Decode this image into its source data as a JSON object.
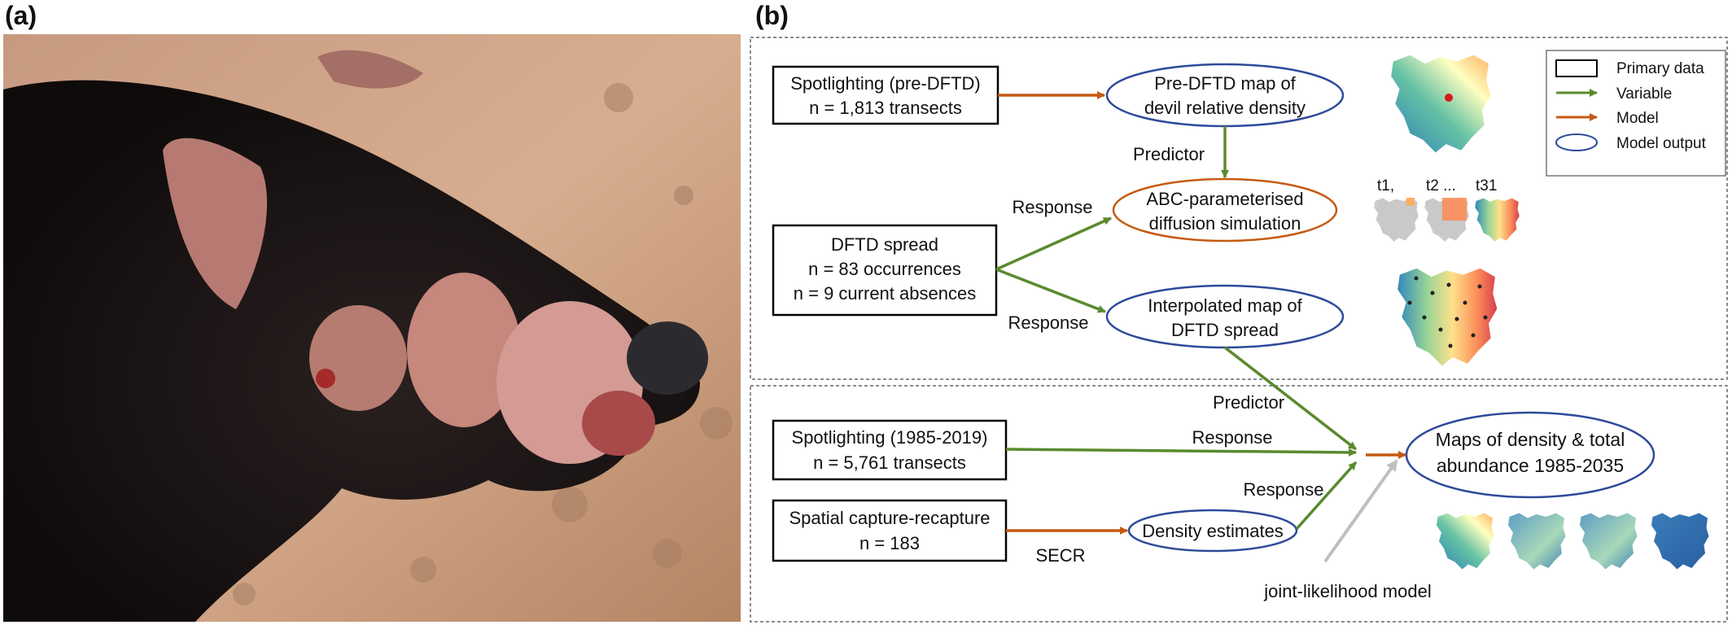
{
  "panel_a": {
    "label": "(a)"
  },
  "panel_b": {
    "label": "(b)"
  },
  "legend": {
    "primary": "Primary data",
    "variable": "Variable",
    "model": "Model",
    "output": "Model output"
  },
  "boxes": {
    "spot_pre": [
      "Spotlighting (pre-DFTD)",
      "n = 1,813 transects"
    ],
    "dftd": [
      "DFTD spread",
      "n = 83 occurrences",
      "n = 9 current absences"
    ],
    "spot_85": [
      "Spotlighting (1985-2019)",
      "n = 5,761 transects"
    ],
    "scr": [
      "Spatial capture-recapture",
      "n =  183"
    ]
  },
  "ovals": {
    "predftd_map": [
      "Pre-DFTD map of",
      "devil relative density"
    ],
    "abc": [
      "ABC-parameterised",
      "diffusion simulation"
    ],
    "interp": [
      "Interpolated map of",
      "DFTD spread"
    ],
    "density": [
      "Density estimates"
    ],
    "maps_out": [
      "Maps of density & total",
      "abundance 1985-2035"
    ]
  },
  "edge_labels": {
    "predictor1": "Predictor",
    "response_abc": "Response",
    "response_interp": "Response",
    "predictor2": "Predictor",
    "response_spot": "Response",
    "response_density": "Response",
    "secr": "SECR",
    "joint": "joint-likelihood model"
  },
  "time_labels": {
    "t1": "t1,",
    "t2": "t2 ...",
    "t31": "t31"
  },
  "colors": {
    "variable": "#5a8a2e",
    "model": "#c55a11",
    "output": "#2e4a9a",
    "joint_arrow": "#bfbfbf"
  }
}
